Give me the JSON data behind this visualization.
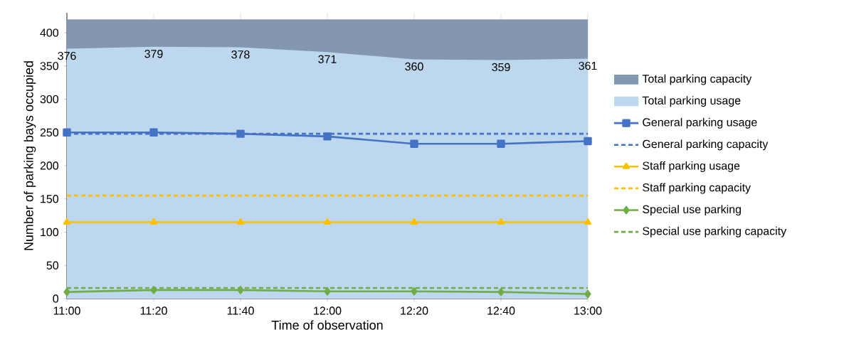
{
  "chart_data": {
    "type": "line",
    "xlabel": "Time of observation",
    "ylabel": "Number of parking bays occupied",
    "categories": [
      "11:00",
      "11:20",
      "11:40",
      "12:00",
      "12:20",
      "12:40",
      "13:00"
    ],
    "ylim": [
      0,
      430
    ],
    "yticks": [
      0,
      50,
      100,
      150,
      200,
      250,
      300,
      350,
      400
    ],
    "grid": "x",
    "legend": "right",
    "series": [
      {
        "name": "Total parking capacity",
        "type": "area",
        "color": "#8497b0",
        "values": [
          420,
          420,
          420,
          420,
          420,
          420,
          420
        ]
      },
      {
        "name": "Total parking usage",
        "type": "area",
        "color": "#bdd7ee",
        "values": [
          376,
          379,
          378,
          371,
          360,
          359,
          361
        ],
        "value_labels": [
          "376",
          "379",
          "378",
          "371",
          "360",
          "359",
          "361"
        ]
      },
      {
        "name": "General parking usage",
        "type": "line",
        "color": "#4472c4",
        "marker": "square",
        "line_style": "solid",
        "values": [
          250,
          250,
          248,
          244,
          233,
          233,
          237
        ]
      },
      {
        "name": "General parking capacity",
        "type": "line",
        "color": "#4472c4",
        "marker": "none",
        "line_style": "dashed",
        "values": [
          248,
          248,
          248,
          248,
          248,
          248,
          248
        ]
      },
      {
        "name": "Staff parking usage",
        "type": "line",
        "color": "#ffc000",
        "marker": "triangle",
        "line_style": "solid",
        "values": [
          115,
          115,
          115,
          115,
          115,
          115,
          115
        ]
      },
      {
        "name": "Staff parking capacity",
        "type": "line",
        "color": "#ffc000",
        "marker": "none",
        "line_style": "dashed",
        "values": [
          155,
          155,
          155,
          155,
          155,
          155,
          155
        ]
      },
      {
        "name": "Special use parking",
        "type": "line",
        "color": "#70ad47",
        "marker": "diamond",
        "line_style": "solid",
        "values": [
          10,
          13,
          13,
          11,
          11,
          10,
          7
        ]
      },
      {
        "name": "Special use parking capacity",
        "type": "line",
        "color": "#70ad47",
        "marker": "none",
        "line_style": "dashed",
        "values": [
          16,
          16,
          16,
          16,
          16,
          16,
          16
        ]
      }
    ]
  }
}
